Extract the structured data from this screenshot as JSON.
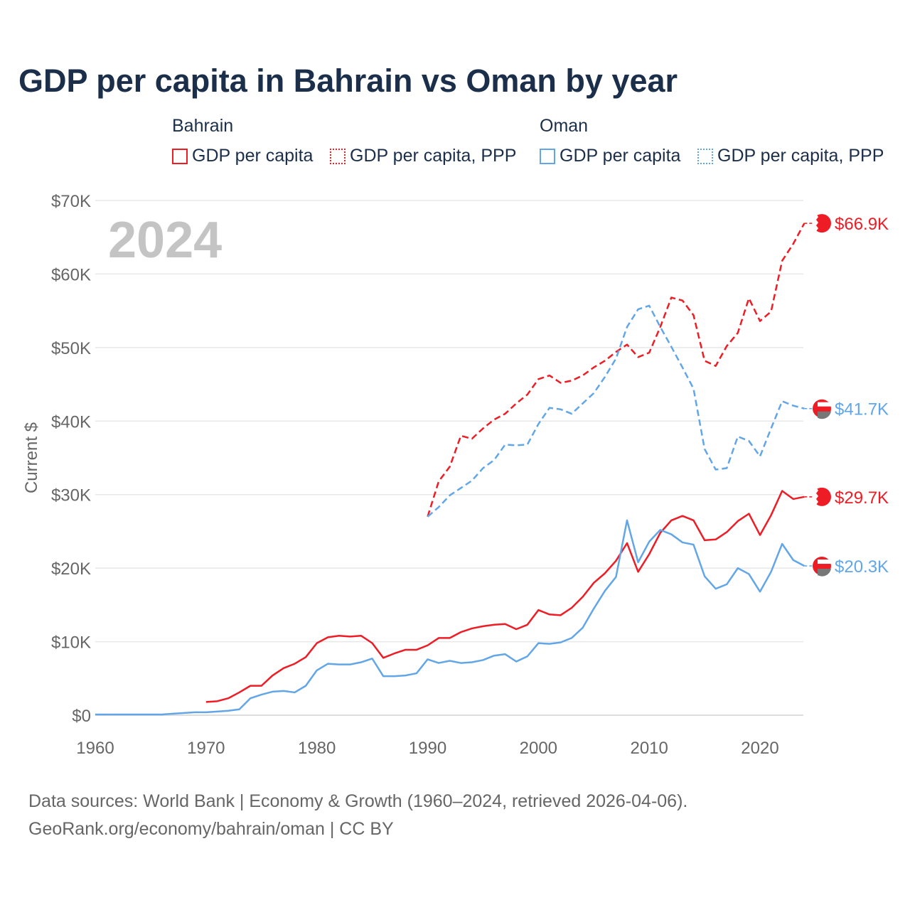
{
  "chart_data": {
    "type": "line",
    "title": "GDP per capita in Bahrain vs Oman by year",
    "ylabel": "Current $",
    "xlabel": "",
    "xlim": [
      1960,
      2024
    ],
    "ylim": [
      0,
      70000
    ],
    "x_ticks": [
      "1960",
      "1970",
      "1980",
      "1990",
      "2000",
      "2010",
      "2020"
    ],
    "y_ticks": [
      "$0",
      "$10K",
      "$20K",
      "$30K",
      "$40K",
      "$50K",
      "$60K",
      "$70K"
    ],
    "year_label": "2024",
    "grid": true,
    "legend_groups": [
      "Bahrain",
      "Oman"
    ],
    "series": [
      {
        "name": "GDP per capita",
        "country": "Bahrain",
        "color": "#ee1c25",
        "dash": "solid",
        "start": 1970,
        "end_label": "$29.7K",
        "values": [
          1.8,
          1.9,
          2.3,
          3.1,
          4.0,
          4.0,
          5.4,
          6.4,
          7.0,
          7.9,
          9.8,
          10.6,
          10.8,
          10.7,
          10.8,
          9.8,
          7.8,
          8.4,
          8.9,
          8.9,
          9.5,
          10.5,
          10.5,
          11.3,
          11.8,
          12.1,
          12.3,
          12.4,
          11.7,
          12.3,
          14.3,
          13.7,
          13.6,
          14.6,
          16.1,
          18.0,
          19.3,
          21.0,
          23.4,
          19.5,
          21.9,
          24.8,
          26.5,
          27.1,
          26.5,
          23.8,
          23.9,
          24.9,
          26.4,
          27.4,
          24.5,
          27.2,
          30.5,
          29.4,
          29.7
        ]
      },
      {
        "name": "GDP per capita, PPP",
        "country": "Bahrain",
        "color": "#ee1c25",
        "dash": "dashed",
        "start": 1990,
        "end_label": "$66.9K",
        "values": [
          27.0,
          31.8,
          33.8,
          38.0,
          37.6,
          39.0,
          40.2,
          41.0,
          42.4,
          43.6,
          45.7,
          46.2,
          45.2,
          45.5,
          46.2,
          47.3,
          48.2,
          49.4,
          50.4,
          48.7,
          49.3,
          52.8,
          56.8,
          56.4,
          54.4,
          48.2,
          47.5,
          50.2,
          52.0,
          56.7,
          53.6,
          54.9,
          61.8,
          64.1,
          66.9
        ]
      },
      {
        "name": "GDP per capita",
        "country": "Oman",
        "color": "#62a6e8",
        "dash": "solid",
        "start": 1960,
        "end_label": "$20.3K",
        "values": [
          0.1,
          0.1,
          0.1,
          0.1,
          0.1,
          0.1,
          0.1,
          0.2,
          0.3,
          0.4,
          0.4,
          0.5,
          0.6,
          0.8,
          2.3,
          2.8,
          3.2,
          3.3,
          3.1,
          4.0,
          6.1,
          7.0,
          6.9,
          6.9,
          7.2,
          7.7,
          5.3,
          5.3,
          5.4,
          5.7,
          7.6,
          7.1,
          7.4,
          7.1,
          7.2,
          7.5,
          8.1,
          8.3,
          7.3,
          8.0,
          9.8,
          9.7,
          9.9,
          10.5,
          11.9,
          14.5,
          16.9,
          18.8,
          26.5,
          20.8,
          23.6,
          25.2,
          24.6,
          23.5,
          23.2,
          18.9,
          17.2,
          17.8,
          20.0,
          19.2,
          16.8,
          19.5,
          23.3,
          21.1,
          20.3
        ]
      },
      {
        "name": "GDP per capita, PPP",
        "country": "Oman",
        "color": "#62a6e8",
        "dash": "dashed",
        "start": 1990,
        "end_label": "$41.7K",
        "values": [
          27.0,
          28.3,
          29.9,
          30.9,
          31.9,
          33.6,
          34.7,
          36.8,
          36.7,
          36.8,
          39.6,
          41.8,
          41.6,
          41.0,
          42.4,
          43.8,
          46.0,
          48.5,
          52.8,
          55.2,
          55.7,
          52.8,
          50.1,
          47.3,
          44.4,
          36.2,
          33.4,
          33.6,
          37.9,
          37.3,
          35.2,
          39.0,
          42.7,
          42.1,
          41.7
        ]
      }
    ],
    "value_unit": "thousand USD"
  },
  "footer": {
    "line1": "Data sources: World Bank | Economy & Growth (1960–2024, retrieved 2026-04-06).",
    "line2": "GeoRank.org/economy/bahrain/oman | CC BY"
  }
}
